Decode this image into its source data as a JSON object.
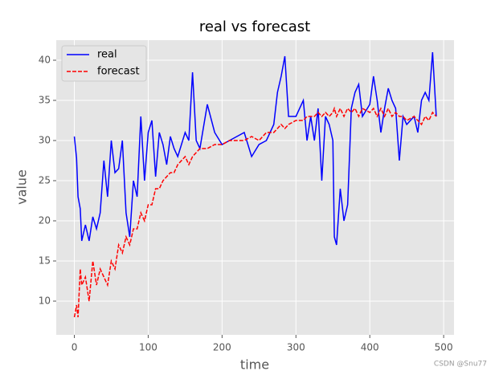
{
  "chart_data": {
    "type": "line",
    "title": "real vs forecast",
    "x_label": "time",
    "y_label": "value",
    "x": [
      0,
      3,
      5,
      8,
      10,
      15,
      20,
      25,
      30,
      35,
      40,
      45,
      50,
      55,
      60,
      65,
      70,
      75,
      80,
      85,
      90,
      95,
      100,
      105,
      110,
      115,
      120,
      125,
      130,
      135,
      140,
      150,
      155,
      160,
      165,
      170,
      180,
      190,
      200,
      210,
      220,
      230,
      240,
      250,
      260,
      270,
      275,
      280,
      285,
      290,
      300,
      310,
      315,
      320,
      325,
      330,
      335,
      340,
      345,
      350,
      352,
      355,
      360,
      365,
      370,
      375,
      380,
      385,
      390,
      400,
      405,
      410,
      415,
      420,
      425,
      430,
      435,
      440,
      445,
      450,
      460,
      465,
      470,
      475,
      480,
      485,
      490
    ],
    "series": [
      {
        "name": "real",
        "color": "#0000ff",
        "dash": false,
        "values": [
          30.5,
          27.8,
          23,
          21.5,
          17.5,
          19.5,
          17.5,
          20.5,
          19,
          21,
          27.5,
          23,
          30,
          26,
          26.5,
          30,
          21,
          18,
          25,
          23,
          33,
          25,
          31,
          32.5,
          25.5,
          31,
          29.5,
          27,
          30.5,
          29,
          28,
          31,
          30,
          38.5,
          30,
          29,
          34.5,
          31,
          29.5,
          30,
          30.5,
          31,
          28,
          29.5,
          30,
          32,
          36,
          38,
          40.5,
          33,
          33,
          35,
          30,
          33,
          30,
          34,
          25,
          33,
          32,
          30,
          18,
          17,
          24,
          20,
          22,
          34,
          36,
          37,
          33,
          34.5,
          38,
          35,
          31,
          34,
          36.5,
          35,
          34,
          27.5,
          33,
          32,
          33,
          31,
          35,
          36,
          35,
          41,
          33
        ]
      },
      {
        "name": "forecast",
        "color": "#ff0000",
        "dash": true,
        "values": [
          8,
          9.5,
          8,
          14,
          12,
          13,
          10,
          15,
          12,
          14,
          13,
          12,
          15,
          14,
          17,
          16,
          18,
          17,
          19,
          19,
          21,
          20,
          22,
          22,
          24,
          24,
          25,
          25.5,
          26,
          26,
          27,
          28,
          27,
          28,
          28.5,
          29,
          29,
          29.5,
          29.5,
          30,
          30,
          30,
          30.5,
          30,
          31,
          31,
          31.5,
          32,
          31.5,
          32,
          32.5,
          32.5,
          33,
          33,
          33,
          33.5,
          33,
          33.5,
          33,
          33.5,
          34,
          33,
          34,
          33,
          34,
          33.5,
          34,
          33,
          34,
          33.5,
          34,
          33,
          34,
          33,
          34,
          33,
          33.5,
          33,
          33,
          32.5,
          33,
          32.5,
          32,
          33,
          32.5,
          33.5,
          33
        ]
      }
    ],
    "xlim": [
      -24.5,
      514
    ],
    "ylim": [
      5.8,
      42.5
    ],
    "xticks": [
      0,
      100,
      200,
      300,
      400,
      500
    ],
    "yticks": [
      10,
      15,
      20,
      25,
      30,
      35,
      40
    ],
    "grid": true,
    "legend": "upper left",
    "watermark": "CSDN @Snu77"
  }
}
